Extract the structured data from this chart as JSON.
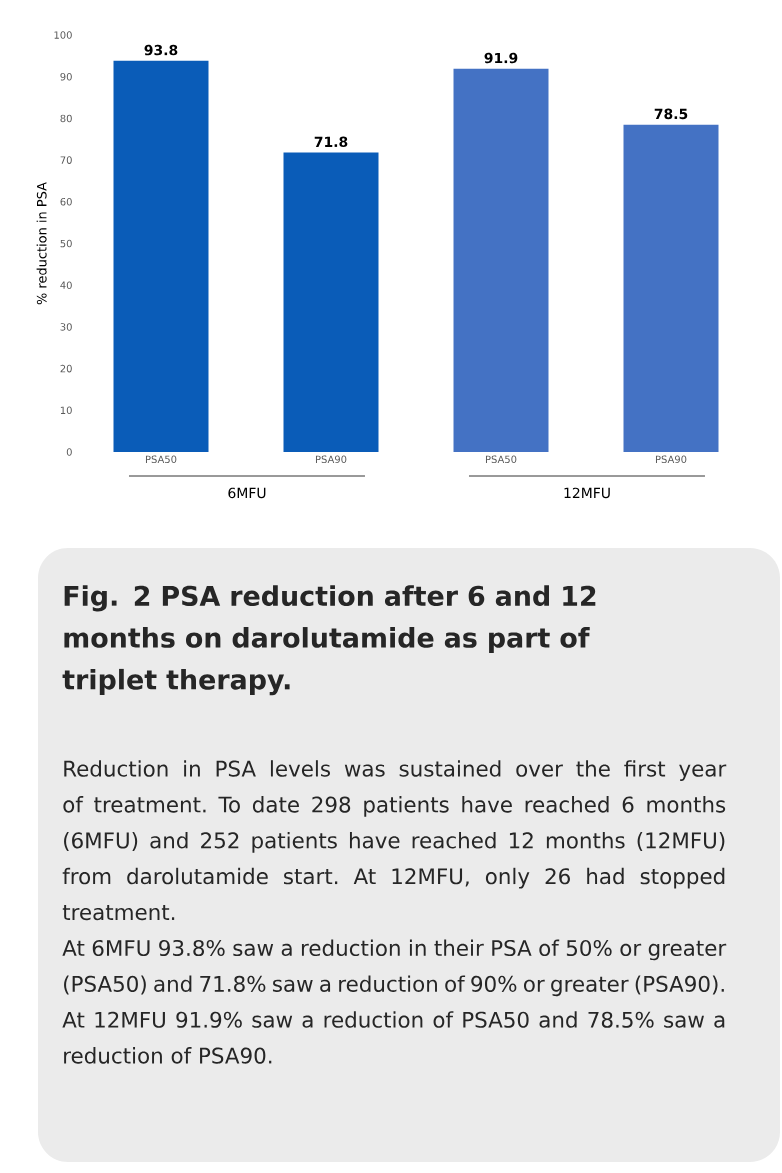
{
  "chart_data": {
    "type": "bar",
    "title": "Fig. 2 PSA reduction after 6 and 12 months on darolutamide as part of triplet therapy.",
    "ylabel": "% reduction in PSA",
    "categories": [
      "PSA50",
      "PSA90",
      "PSA50",
      "PSA90"
    ],
    "values": [
      93.8,
      71.8,
      91.9,
      78.5
    ],
    "colors": [
      "#0a5cb8",
      "#0a5cb8",
      "#4472c4",
      "#4472c4"
    ],
    "ylim": [
      0,
      100
    ],
    "yticks": [
      0,
      10,
      20,
      30,
      40,
      50,
      60,
      70,
      80,
      90,
      100
    ],
    "grid": false,
    "data_labels": true,
    "annotations": [
      "6MFU",
      "12MFU",
      "Reduction in PSA levels was sustained over the first year of treatment. To date 298 patients have reached 6 months (6MFU) and 252 patients have reached 12 months (12MFU) from darolutamide start. At 12MFU, only 26 had stopped treatment.",
      "At 6MFU 93.8% saw a reduction in their PSA of 50% or greater (PSA50) and 71.8% saw a reduction of 90% or greater (PSA90). At 12MFU 91.9% saw a reduction of PSA50 and 78.5% saw a reduction of PSA90."
    ]
  }
}
